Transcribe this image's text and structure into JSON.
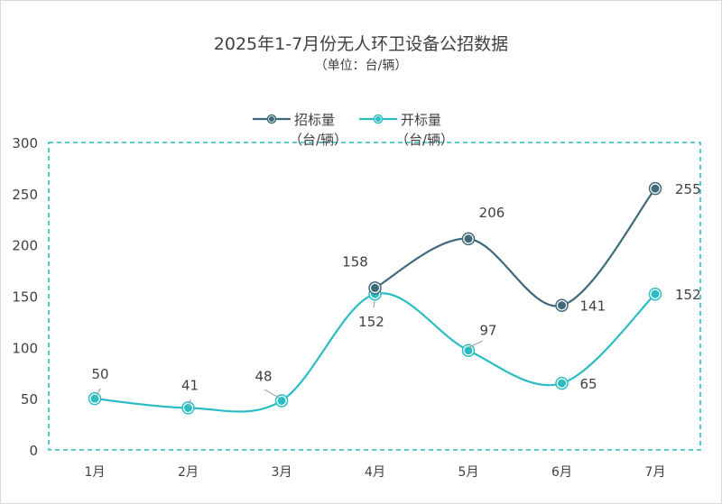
{
  "chart_data": {
    "type": "line",
    "title": "2025年1-7月份无人环卫设备公招数据",
    "subtitle": "（单位：台/辆）",
    "categories": [
      "1月",
      "2月",
      "3月",
      "4月",
      "5月",
      "6月",
      "7月"
    ],
    "ylim": [
      0,
      300
    ],
    "yticks": [
      0,
      50,
      100,
      150,
      200,
      250,
      300
    ],
    "grid": false,
    "legend_position": "top",
    "series": [
      {
        "name": "招标量（台/辆）",
        "line1": "招标量",
        "line2": "（台/辆）",
        "color": "#3f6a7a",
        "values": [
          null,
          null,
          null,
          158,
          206,
          141,
          255
        ]
      },
      {
        "name": "开标量（台/辆）",
        "line1": "开标量",
        "line2": "（台/辆）",
        "color": "#2bbcc4",
        "values": [
          50,
          41,
          48,
          152,
          97,
          65,
          152
        ]
      }
    ],
    "data_labels": [
      {
        "series": 0,
        "index": 3,
        "text": "158"
      },
      {
        "series": 0,
        "index": 4,
        "text": "206"
      },
      {
        "series": 0,
        "index": 5,
        "text": "141"
      },
      {
        "series": 0,
        "index": 6,
        "text": "255"
      },
      {
        "series": 1,
        "index": 0,
        "text": "50"
      },
      {
        "series": 1,
        "index": 1,
        "text": "41"
      },
      {
        "series": 1,
        "index": 2,
        "text": "48"
      },
      {
        "series": 1,
        "index": 3,
        "text": "152"
      },
      {
        "series": 1,
        "index": 4,
        "text": "97"
      },
      {
        "series": 1,
        "index": 5,
        "text": "65"
      },
      {
        "series": 1,
        "index": 6,
        "text": "152"
      }
    ],
    "plot_border_color": "#2bbcc4"
  }
}
